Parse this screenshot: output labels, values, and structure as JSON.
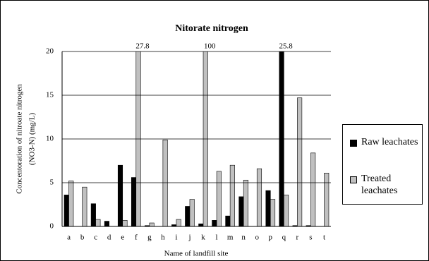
{
  "chart_data": {
    "type": "bar",
    "title": "Nitorate  nitrogen",
    "xlabel": "Name of landfill site",
    "ylabel": [
      "Concentoration of nitroate nitrogen",
      "(NO3-N)  (mg/L)"
    ],
    "categories": [
      "a",
      "b",
      "c",
      "d",
      "e",
      "f",
      "g",
      "h",
      "i",
      "j",
      "k",
      "l",
      "m",
      "n",
      "o",
      "p",
      "q",
      "r",
      "s",
      "t"
    ],
    "series": [
      {
        "name": "Raw leachates",
        "color": "#000000",
        "values": [
          3.6,
          0,
          2.6,
          0.6,
          7.0,
          5.6,
          0.1,
          0,
          0.2,
          2.3,
          0.3,
          0.7,
          1.2,
          3.4,
          0,
          4.1,
          25.8,
          0.1,
          0.1,
          0
        ],
        "value_labels": [
          null,
          null,
          null,
          null,
          null,
          null,
          null,
          null,
          null,
          null,
          null,
          null,
          null,
          null,
          null,
          null,
          "25.8",
          null,
          null,
          null
        ]
      },
      {
        "name": "Treated leachates",
        "color": "#c0c0c0",
        "values": [
          5.2,
          4.5,
          0.8,
          0,
          0.7,
          27.8,
          0.4,
          9.9,
          0.8,
          3.1,
          100,
          6.3,
          7.0,
          5.3,
          6.6,
          3.1,
          3.6,
          14.7,
          8.4,
          6.1
        ],
        "value_labels": [
          null,
          null,
          null,
          null,
          null,
          "27.8",
          null,
          null,
          null,
          null,
          "100",
          null,
          null,
          null,
          null,
          null,
          null,
          null,
          null,
          null
        ]
      }
    ],
    "ylim": [
      0,
      20
    ],
    "yticks": [
      0,
      5,
      10,
      15,
      20
    ],
    "grid": true,
    "legend": "right"
  }
}
